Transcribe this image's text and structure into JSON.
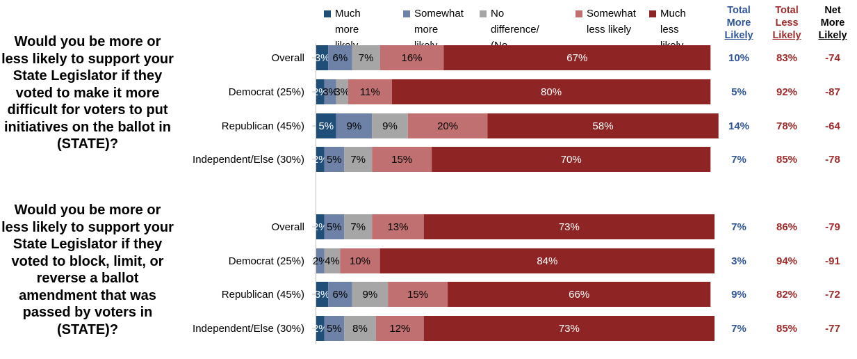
{
  "questions": [
    "Would you be more or less likely to support your State Legislator if they voted to make it more difficult for voters to put initiatives on the ballot in (STATE)?",
    "Would you be more or less likely to support your State Legislator if they voted to block, limit, or reverse a ballot amendment that was passed by voters in (STATE)?"
  ],
  "legend": [
    {
      "label": "Much more\nlikely",
      "color": "#1f4e79"
    },
    {
      "label": "Somewhat\nmore likely",
      "color": "#6d82a6"
    },
    {
      "label": "No difference/\n(No response)",
      "color": "#a6a6a6"
    },
    {
      "label": "Somewhat\nless likely",
      "color": "#c07070"
    },
    {
      "label": "Much less\nlikely",
      "color": "#8e2424"
    }
  ],
  "summary_headers": [
    {
      "lines": [
        "Total",
        "More",
        "Likely"
      ],
      "color": "#2f5597"
    },
    {
      "lines": [
        "Total",
        "Less",
        "Likely"
      ],
      "color": "#a02b2b"
    },
    {
      "lines": [
        "Net",
        "More",
        "Likely"
      ],
      "color": "#000000"
    }
  ],
  "chart_data": {
    "type": "bar",
    "orientation": "horizontal",
    "stacked": true,
    "xlim": [
      0,
      100
    ],
    "series": [
      {
        "name": "Much more likely",
        "color": "#1f4e79"
      },
      {
        "name": "Somewhat more likely",
        "color": "#6d82a6"
      },
      {
        "name": "No difference/ (No response)",
        "color": "#a6a6a6"
      },
      {
        "name": "Somewhat less likely",
        "color": "#c07070"
      },
      {
        "name": "Much less likely",
        "color": "#8e2424"
      }
    ],
    "groups": [
      {
        "rows": [
          {
            "label": "Overall",
            "values": [
              3,
              6,
              7,
              16,
              67
            ],
            "labels": [
              "3%",
              "6%",
              "7%",
              "16%",
              "67%"
            ],
            "total_more": "10%",
            "total_less": "83%",
            "net": "-74"
          },
          {
            "label": "Democrat (25%)",
            "values": [
              2,
              3,
              3,
              11,
              80
            ],
            "labels": [
              "2%",
              "3%",
              "3%",
              "11%",
              "80%"
            ],
            "total_more": "5%",
            "total_less": "92%",
            "net": "-87"
          },
          {
            "label": "Republican (45%)",
            "values": [
              5,
              9,
              9,
              20,
              58
            ],
            "labels": [
              "5%",
              "9%",
              "9%",
              "20%",
              "58%"
            ],
            "total_more": "14%",
            "total_less": "78%",
            "net": "-64"
          },
          {
            "label": "Independent/Else (30%)",
            "values": [
              2,
              5,
              7,
              15,
              70
            ],
            "labels": [
              "2%",
              "5%",
              "7%",
              "15%",
              "70%"
            ],
            "total_more": "7%",
            "total_less": "85%",
            "net": "-78"
          }
        ]
      },
      {
        "rows": [
          {
            "label": "Overall",
            "values": [
              2,
              5,
              7,
              13,
              73
            ],
            "labels": [
              "2%",
              "5%",
              "7%",
              "13%",
              "73%"
            ],
            "total_more": "7%",
            "total_less": "86%",
            "net": "-79"
          },
          {
            "label": "Democrat (25%)",
            "values": [
              0,
              2,
              4,
              10,
              84
            ],
            "labels": [
              "",
              "2%",
              "4%",
              "10%",
              "84%"
            ],
            "total_more": "3%",
            "total_less": "94%",
            "net": "-91"
          },
          {
            "label": "Republican (45%)",
            "values": [
              3,
              6,
              9,
              15,
              66
            ],
            "labels": [
              "3%",
              "6%",
              "9%",
              "15%",
              "66%"
            ],
            "total_more": "9%",
            "total_less": "82%",
            "net": "-72"
          },
          {
            "label": "Independent/Else (30%)",
            "values": [
              2,
              5,
              8,
              12,
              73
            ],
            "labels": [
              "2%",
              "5%",
              "8%",
              "12%",
              "73%"
            ],
            "total_more": "7%",
            "total_less": "85%",
            "net": "-77"
          }
        ]
      }
    ],
    "summary_colors": {
      "total_more": "#2f5597",
      "total_less": "#a02b2b",
      "net": "#a02b2b"
    }
  }
}
